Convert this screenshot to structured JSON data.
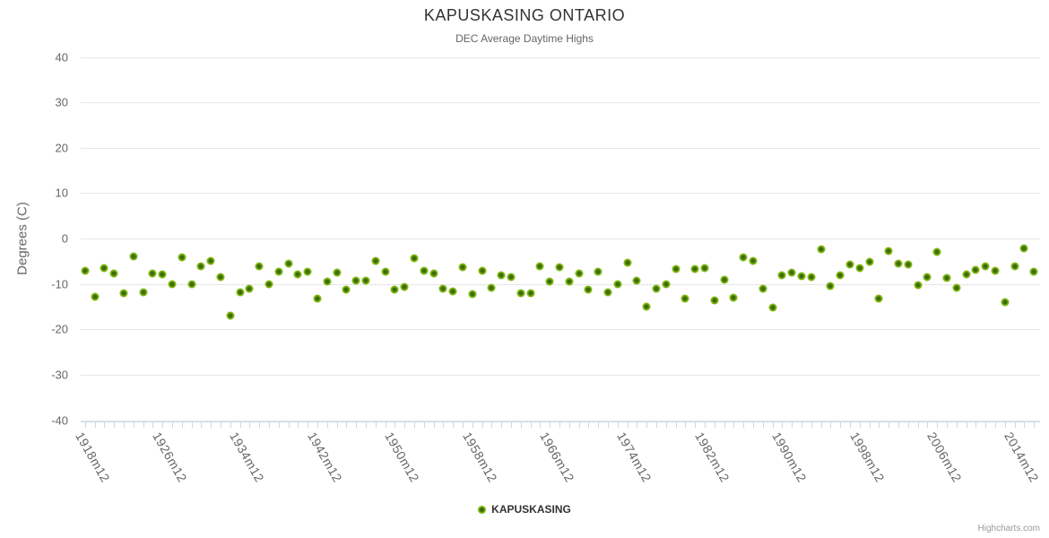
{
  "chart": {
    "title": "KAPUSKASING ONTARIO",
    "subtitle": "DEC Average Daytime Highs",
    "credits": "Highcharts.com"
  },
  "legend": {
    "items": [
      {
        "label": "KAPUSKASING",
        "marker_color": "#7cb50e"
      }
    ]
  },
  "chart_data": {
    "type": "scatter",
    "title": "KAPUSKASING ONTARIO",
    "subtitle": "DEC Average Daytime Highs",
    "xlabel": "",
    "ylabel": "Degrees (C)",
    "ylim": [
      -40,
      40
    ],
    "y_ticks": [
      40,
      30,
      20,
      10,
      0,
      -10,
      -20,
      -30,
      -40
    ],
    "x_tick_labels": [
      "1918m12",
      "1926m12",
      "1934m12",
      "1942m12",
      "1950m12",
      "1958m12",
      "1966m12",
      "1974m12",
      "1982m12",
      "1990m12",
      "1998m12",
      "2006m12",
      "2014m12"
    ],
    "x_label_start_year": 1918,
    "x_label_interval_years": 8,
    "x_suffix": "m12",
    "grid": "horizontal",
    "legend_position": "bottom-center",
    "colors": {
      "point_ring": "#7cb50e",
      "point_core": "#3e6b0a",
      "grid": "#e6e6e6",
      "axis_tick": "#ccd6eb",
      "title_text": "#333333",
      "subtitle_text": "#666666",
      "axis_label_text": "#666666"
    },
    "series": [
      {
        "name": "KAPUSKASING",
        "start_year": 1917,
        "end_year": 2015,
        "values": [
          -7.1,
          -12.8,
          -6.5,
          -7.8,
          -12.1,
          -4.0,
          -11.9,
          -7.7,
          -7.9,
          -10.0,
          -4.1,
          -10.1,
          -6.1,
          -4.9,
          -8.4,
          -16.9,
          -11.9,
          -11.0,
          -6.1,
          -10.0,
          -7.3,
          -5.5,
          -7.9,
          -7.3,
          -13.2,
          -9.5,
          -7.6,
          -11.3,
          -9.2,
          -9.2,
          -4.9,
          -7.4,
          -11.2,
          -10.7,
          -4.4,
          -7.1,
          -7.8,
          -11.0,
          -11.7,
          -6.3,
          -12.2,
          -7.1,
          -10.9,
          -8.0,
          -8.5,
          -12.0,
          -12.0,
          -6.1,
          -9.5,
          -6.3,
          -9.5,
          -7.8,
          -11.3,
          -7.3,
          -11.9,
          -10.0,
          -5.4,
          -9.3,
          -15.0,
          -11.0,
          -10.0,
          -6.7,
          -13.2,
          -6.7,
          -6.6,
          -13.7,
          -9.0,
          -13.0,
          -4.1,
          -4.9,
          -11.0,
          -15.3,
          -8.0,
          -7.6,
          -8.2,
          -8.5,
          -2.3,
          -10.5,
          -8.0,
          -5.7,
          -6.6,
          -5.1,
          -13.2,
          -2.8,
          -5.6,
          -5.7,
          -10.3,
          -8.4,
          -3.0,
          -8.7,
          -10.9,
          -7.9,
          -6.9,
          -6.1,
          -7.1,
          -14.0,
          -6.1,
          -2.1,
          -7.4
        ]
      }
    ]
  }
}
